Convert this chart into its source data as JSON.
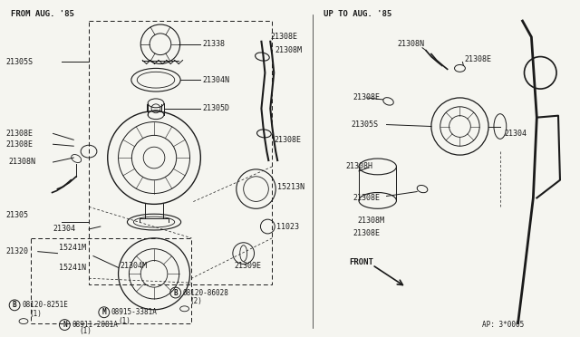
{
  "bg_color": "#f5f5f0",
  "line_color": "#1a1a1a",
  "diagram_ref": "AP: 3*0005",
  "left_header": "FROM AUG. '85",
  "right_header": "UP TO AUG. '85"
}
